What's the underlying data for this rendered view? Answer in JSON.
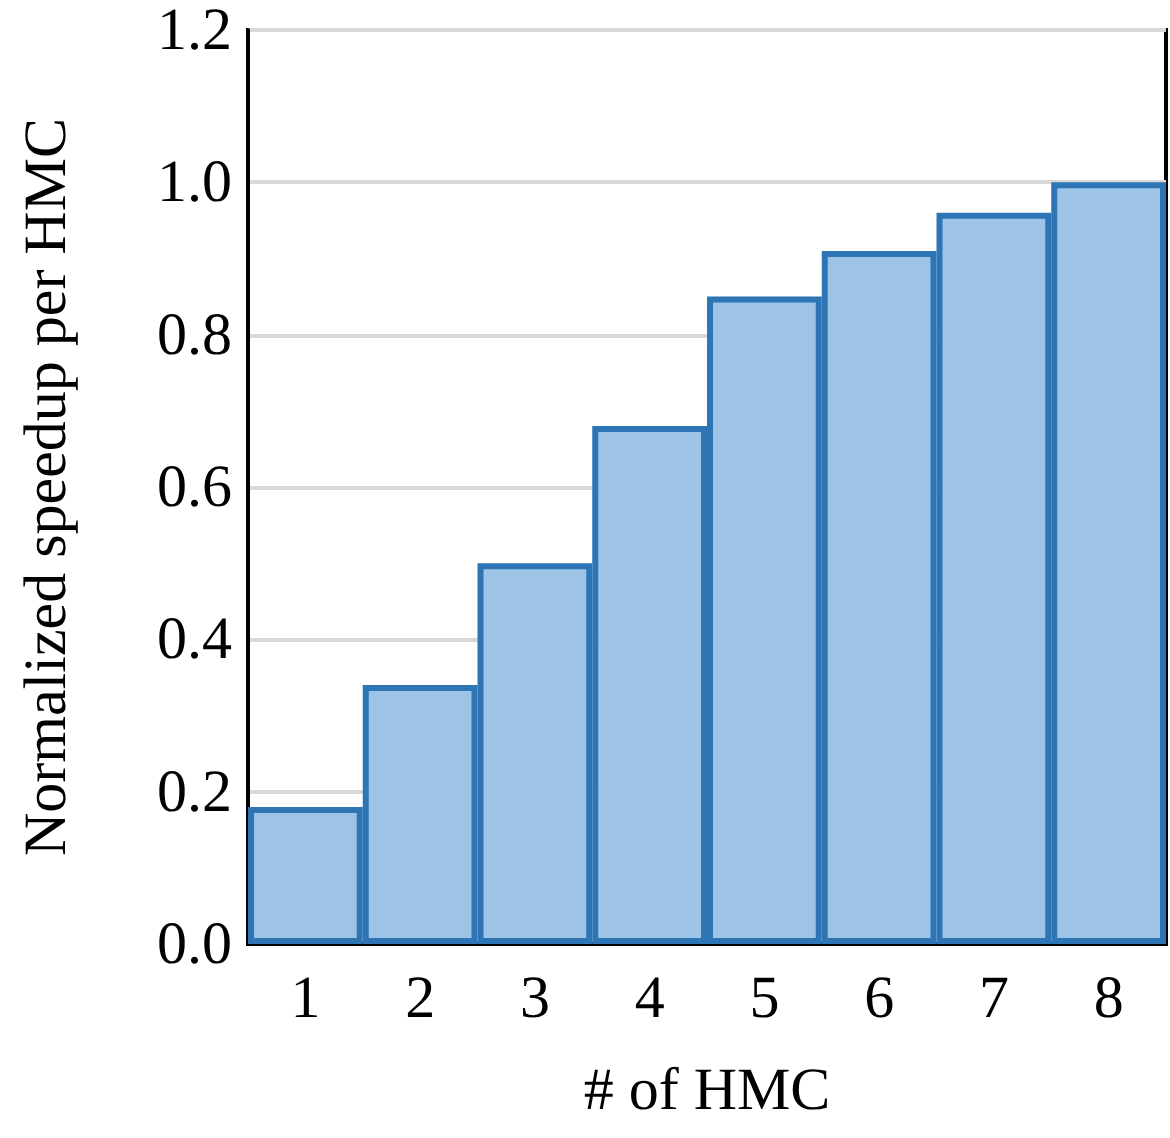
{
  "chart_data": {
    "type": "bar",
    "xlabel": "# of HMC",
    "ylabel": "Normalized speedup per HMC",
    "categories": [
      "1",
      "2",
      "3",
      "4",
      "5",
      "6",
      "7",
      "8"
    ],
    "values": [
      0.18,
      0.34,
      0.5,
      0.68,
      0.85,
      0.91,
      0.96,
      1.0
    ],
    "color": "#9dc3e6",
    "ylim": [
      0,
      1.2
    ],
    "yticks": [
      {
        "value": 0,
        "label": "0.0"
      },
      {
        "value": 0.2,
        "label": "0.2"
      },
      {
        "value": 0.4,
        "label": "0.4"
      },
      {
        "value": 0.6,
        "label": "0.6"
      },
      {
        "value": 0.8,
        "label": "0.8"
      },
      {
        "value": 1.0,
        "label": "1.0"
      },
      {
        "value": 1.2,
        "label": "1.2"
      }
    ],
    "grid": "y"
  }
}
